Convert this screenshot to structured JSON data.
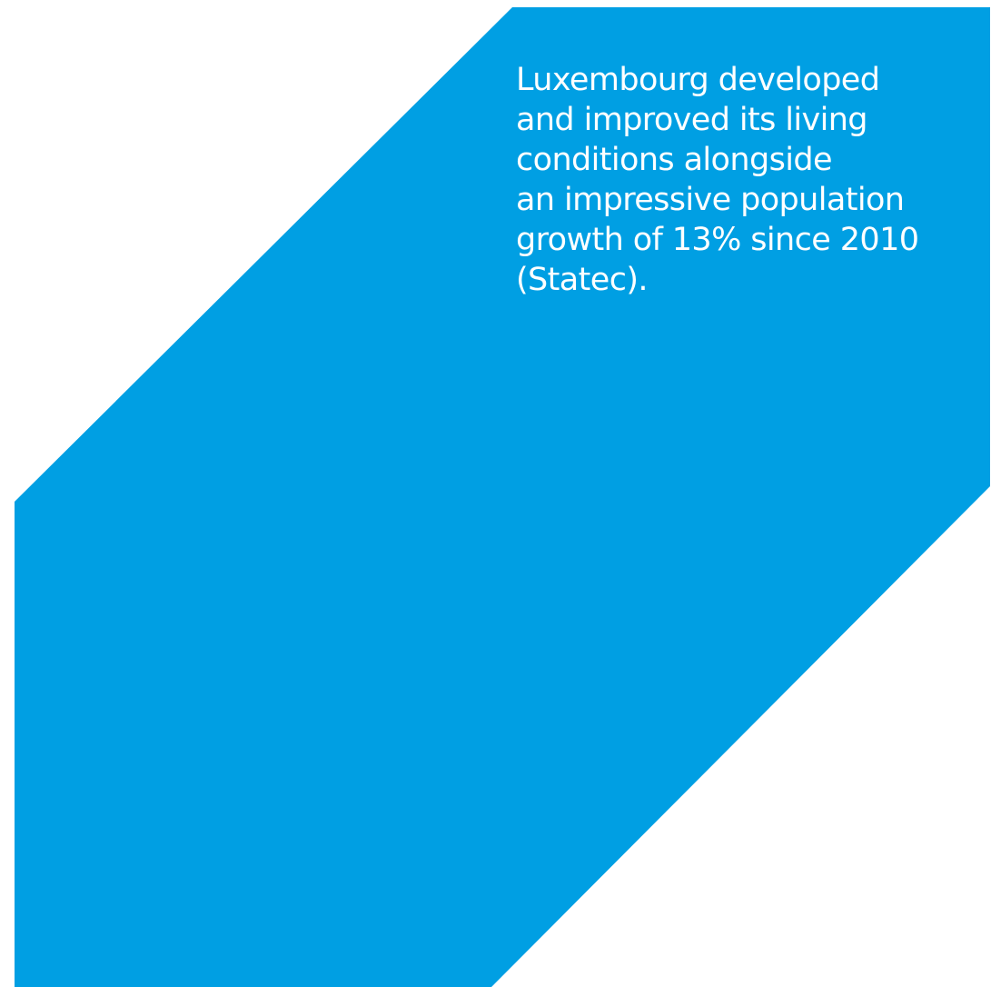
{
  "panel": {
    "color": "#009fe3",
    "text": "Luxembourg developed\nand improved its living\nconditions alongside\nan impressive population\ngrowth of 13% since 2010\n(Statec)."
  }
}
